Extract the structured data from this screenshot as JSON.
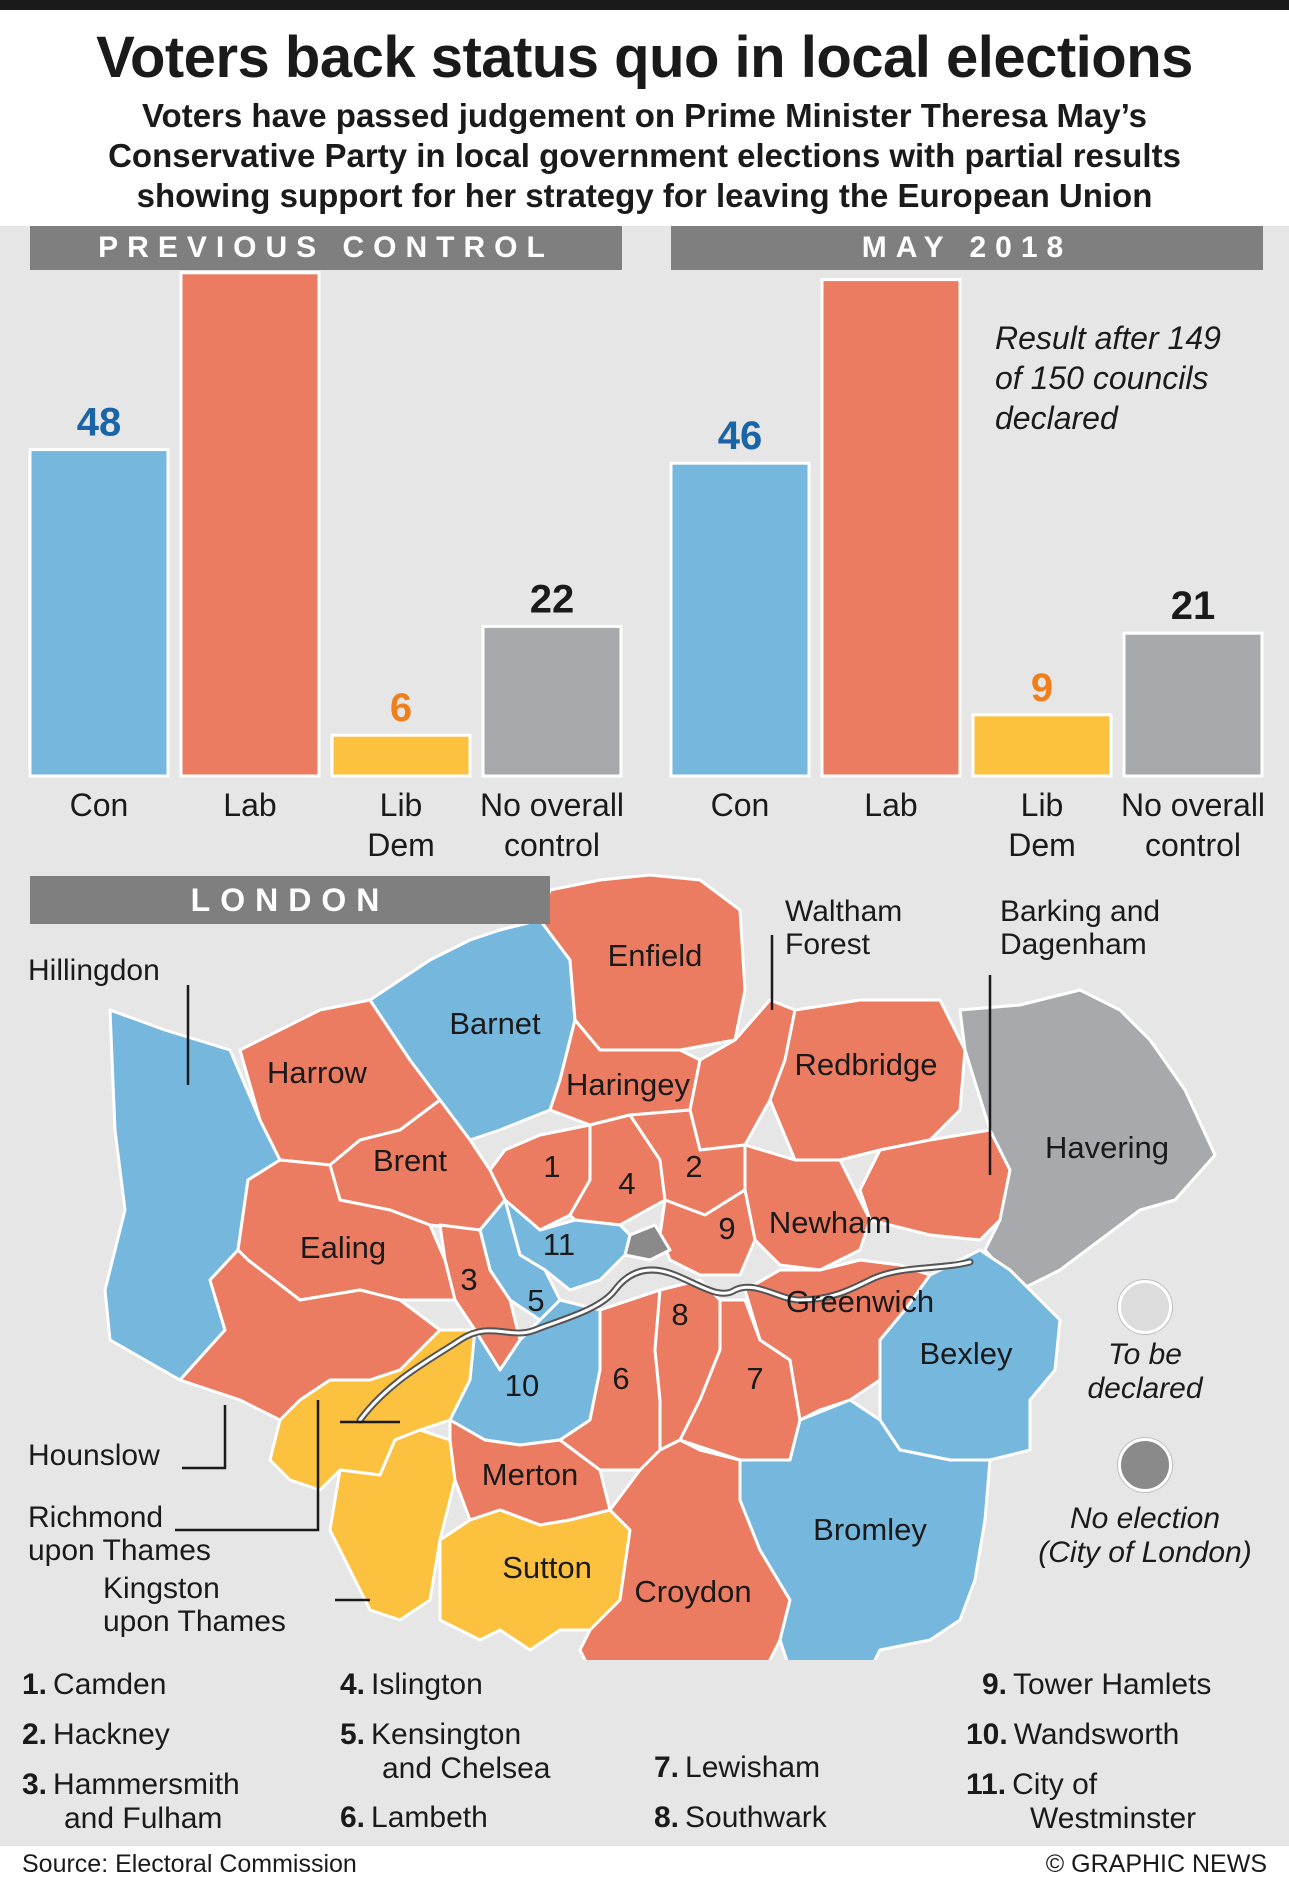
{
  "title": "Voters back status quo in local elections",
  "subtitle": [
    "Voters have passed judgement on Prime Minister Theresa May’s",
    "Conservative Party in local government elections with partial results",
    "showing support for her strategy for leaving the European Union"
  ],
  "colors": {
    "con": "#76b7de",
    "lab": "#ec7c61",
    "libdem": "#fcc13f",
    "noc": "#a7a9ac",
    "tbd": "#dcdcdc",
    "noelection": "#8a8a8a",
    "con_text": "#1a64a8",
    "lab_text": "#d9252a",
    "libdem_text": "#ef7f1a",
    "noc_text": "#1a1a1a"
  },
  "chart_data": [
    {
      "type": "bar",
      "title": "PREVIOUS CONTROL",
      "categories": [
        "Con",
        "Lab",
        "Lib Dem",
        "No overall control"
      ],
      "values": [
        48,
        74,
        6,
        22
      ],
      "ylim": [
        0,
        80
      ]
    },
    {
      "type": "bar",
      "title": "MAY 2018",
      "categories": [
        "Con",
        "Lab",
        "Lib Dem",
        "No overall control"
      ],
      "values": [
        46,
        73,
        9,
        21
      ],
      "ylim": [
        0,
        80
      ],
      "annotation": [
        "Result after 149",
        "of 150 councils",
        "declared"
      ]
    }
  ],
  "london": {
    "title": "LONDON",
    "callouts": {
      "hillingdon": "Hillingdon",
      "hounslow": "Hounslow",
      "richmond": [
        "Richmond",
        "upon Thames"
      ],
      "kingston": [
        "Kingston",
        "upon Thames"
      ],
      "waltham": [
        "Waltham",
        "Forest"
      ],
      "barking": [
        "Barking and",
        "Dagenham"
      ]
    },
    "map_labels": {
      "enfield": "Enfield",
      "barnet": "Barnet",
      "harrow": "Harrow",
      "haringey": "Haringey",
      "redbridge": "Redbridge",
      "havering": "Havering",
      "brent": "Brent",
      "ealing": "Ealing",
      "newham": "Newham",
      "greenwich": "Greenwich",
      "bexley": "Bexley",
      "merton": "Merton",
      "bromley": "Bromley",
      "sutton": "Sutton",
      "croydon": "Croydon",
      "n1": "1",
      "n2": "2",
      "n3": "3",
      "n4": "4",
      "n5": "5",
      "n6": "6",
      "n7": "7",
      "n8": "8",
      "n9": "9",
      "n10": "10",
      "n11": "11"
    },
    "legend_tbd": [
      "To be",
      "declared"
    ],
    "legend_noelection": [
      "No election",
      "(City of London)"
    ],
    "boroughs_list": [
      {
        "num": "1.",
        "name": [
          "Camden"
        ]
      },
      {
        "num": "2.",
        "name": [
          "Hackney"
        ]
      },
      {
        "num": "3.",
        "name": [
          "Hammersmith",
          "and Fulham"
        ]
      },
      {
        "num": "4.",
        "name": [
          "Islington"
        ]
      },
      {
        "num": "5.",
        "name": [
          "Kensington",
          "and Chelsea"
        ]
      },
      {
        "num": "6.",
        "name": [
          "Lambeth"
        ]
      },
      {
        "num": "7.",
        "name": [
          "Lewisham"
        ]
      },
      {
        "num": "8.",
        "name": [
          "Southwark"
        ]
      },
      {
        "num": "9.",
        "name": [
          "Tower Hamlets"
        ]
      },
      {
        "num": "10.",
        "name": [
          "Wandsworth"
        ]
      },
      {
        "num": "11.",
        "name": [
          "City of",
          "Westminster"
        ]
      }
    ]
  },
  "source": "Source: Electoral Commission",
  "credit": "© GRAPHIC NEWS"
}
